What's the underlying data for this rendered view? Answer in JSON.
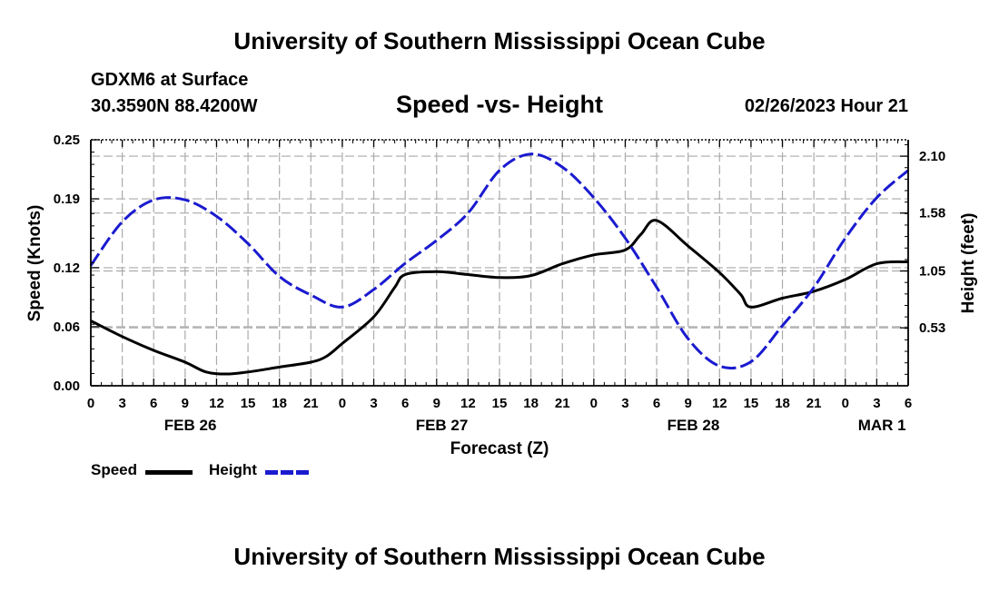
{
  "header": {
    "title": "University of Southern Mississippi Ocean Cube",
    "station": "GDXM6 at Surface",
    "coords": "30.3590N  88.4200W",
    "subtitle": "Speed -vs- Height",
    "datetime": "02/26/2023 Hour 21"
  },
  "footer": {
    "title": "University of Southern Mississippi Ocean Cube"
  },
  "legend": {
    "speed_label": "Speed",
    "height_label": "Height"
  },
  "colors": {
    "speed": "#000000",
    "height": "#1a1ad0",
    "grid": "#aaaaaa"
  },
  "chart_data": {
    "type": "line",
    "title": "Speed -vs- Height",
    "xlabel": "Forecast (Z)",
    "ylabel": "Speed (Knots)",
    "y2label": "Height (feet)",
    "xlim": [
      0,
      78
    ],
    "ylim": [
      0,
      0.25
    ],
    "y2lim": [
      0,
      2.25
    ],
    "xticks": [
      0,
      3,
      6,
      9,
      12,
      15,
      18,
      21,
      24,
      27,
      30,
      33,
      36,
      39,
      42,
      45,
      48,
      51,
      54,
      57,
      60,
      63,
      66,
      69,
      72,
      75,
      78
    ],
    "xtick_labels": [
      "0",
      "3",
      "6",
      "9",
      "12",
      "15",
      "18",
      "21",
      "0",
      "3",
      "6",
      "9",
      "12",
      "15",
      "18",
      "21",
      "0",
      "3",
      "6",
      "9",
      "12",
      "15",
      "18",
      "21",
      "0",
      "3",
      "6"
    ],
    "yticks": [
      0,
      0.06,
      0.12,
      0.19,
      0.25
    ],
    "ytick_labels": [
      "0.00",
      "0.06",
      "0.12",
      "0.19",
      "0.25"
    ],
    "y2ticks": [
      0.53,
      1.05,
      1.58,
      2.1
    ],
    "y2tick_labels": [
      "0.53",
      "1.05",
      "1.58",
      "2.10"
    ],
    "day_labels": [
      {
        "x": 9.5,
        "label": "FEB 26"
      },
      {
        "x": 33.5,
        "label": "FEB 27"
      },
      {
        "x": 57.5,
        "label": "FEB 28"
      },
      {
        "x": 75.5,
        "label": "MAR 1"
      }
    ],
    "grid": true,
    "series": [
      {
        "name": "Speed",
        "axis": "left",
        "style": "solid",
        "x": [
          0,
          3,
          6,
          9,
          11,
          13,
          15,
          18,
          21,
          22.5,
          24,
          27,
          29,
          30,
          33,
          36,
          39,
          42,
          45,
          48,
          51,
          52.5,
          54,
          57,
          60,
          62,
          63,
          66,
          69,
          72,
          75,
          78
        ],
        "values": [
          0.066,
          0.05,
          0.036,
          0.024,
          0.014,
          0.012,
          0.014,
          0.019,
          0.024,
          0.03,
          0.043,
          0.07,
          0.1,
          0.113,
          0.116,
          0.113,
          0.11,
          0.112,
          0.124,
          0.133,
          0.138,
          0.154,
          0.168,
          0.142,
          0.115,
          0.093,
          0.08,
          0.089,
          0.096,
          0.108,
          0.124,
          0.126
        ]
      },
      {
        "name": "Height",
        "axis": "right",
        "style": "dashed",
        "x": [
          0,
          3,
          6,
          9,
          12,
          15,
          18,
          21,
          24,
          27,
          30,
          33,
          36,
          39,
          42,
          45,
          48,
          51,
          54,
          57,
          60,
          63,
          66,
          69,
          72,
          75,
          78
        ],
        "values": [
          1.1,
          1.5,
          1.7,
          1.7,
          1.55,
          1.3,
          1.0,
          0.83,
          0.72,
          0.88,
          1.12,
          1.33,
          1.58,
          1.97,
          2.12,
          2.0,
          1.72,
          1.35,
          0.9,
          0.43,
          0.18,
          0.22,
          0.55,
          0.9,
          1.35,
          1.72,
          1.97
        ]
      }
    ]
  }
}
